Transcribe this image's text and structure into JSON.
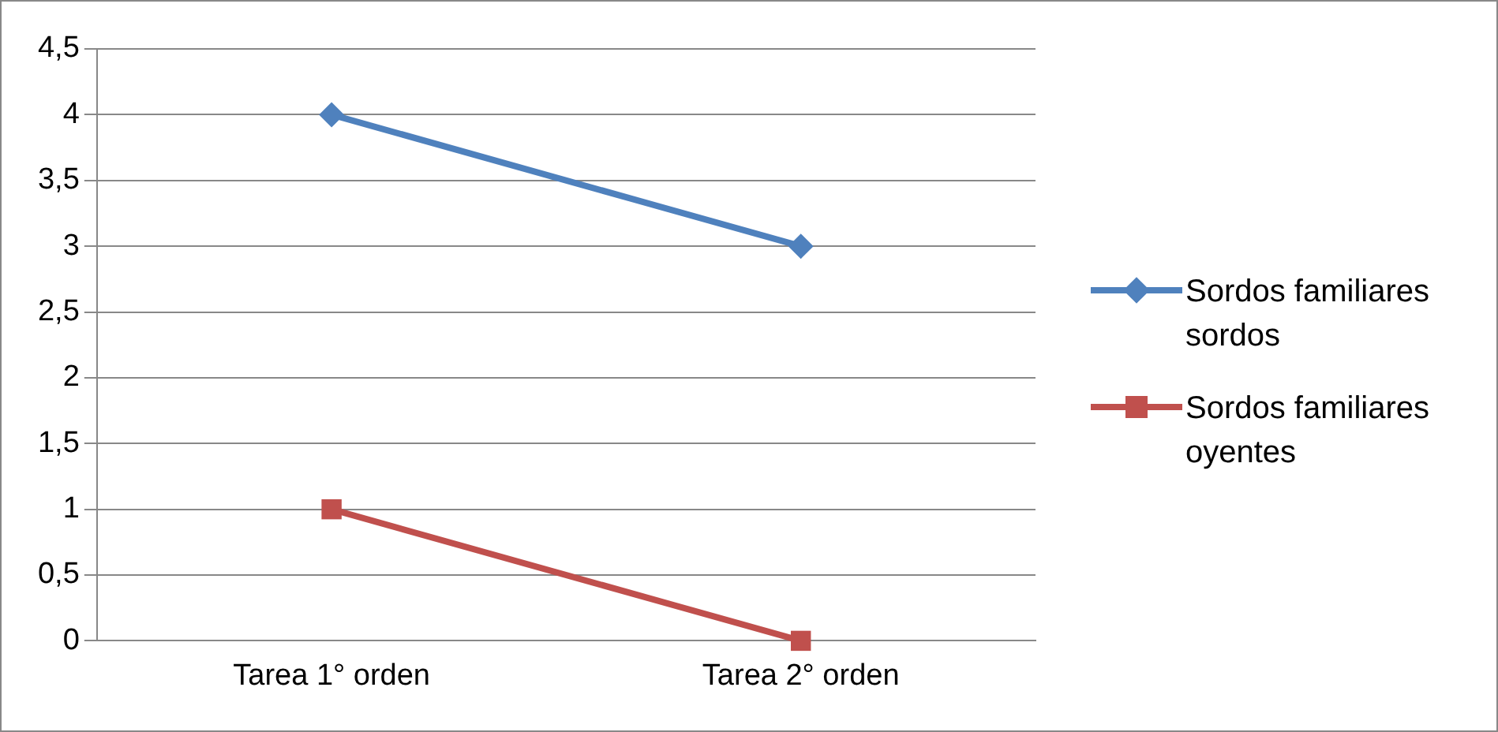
{
  "chart_data": {
    "type": "line",
    "categories": [
      "Tarea 1° orden",
      "Tarea 2° orden"
    ],
    "series": [
      {
        "name": "Sordos familiares sordos",
        "color": "#4f81bd",
        "values": [
          4,
          3
        ],
        "marker": "diamond"
      },
      {
        "name": "Sordos familiares oyentes",
        "color": "#c0504d",
        "values": [
          1,
          0
        ],
        "marker": "square"
      }
    ],
    "ylim": [
      0,
      4.5
    ],
    "yticks": [
      0,
      {
        "value": 0.5,
        "label": "0,5"
      },
      1,
      {
        "value": 1.5,
        "label": "1,5"
      },
      2,
      {
        "value": 2.5,
        "label": "2,5"
      },
      3,
      {
        "value": 3.5,
        "label": "3,5"
      },
      4,
      {
        "value": 4.5,
        "label": "4,5"
      }
    ],
    "grid": "y",
    "legend": "right"
  }
}
